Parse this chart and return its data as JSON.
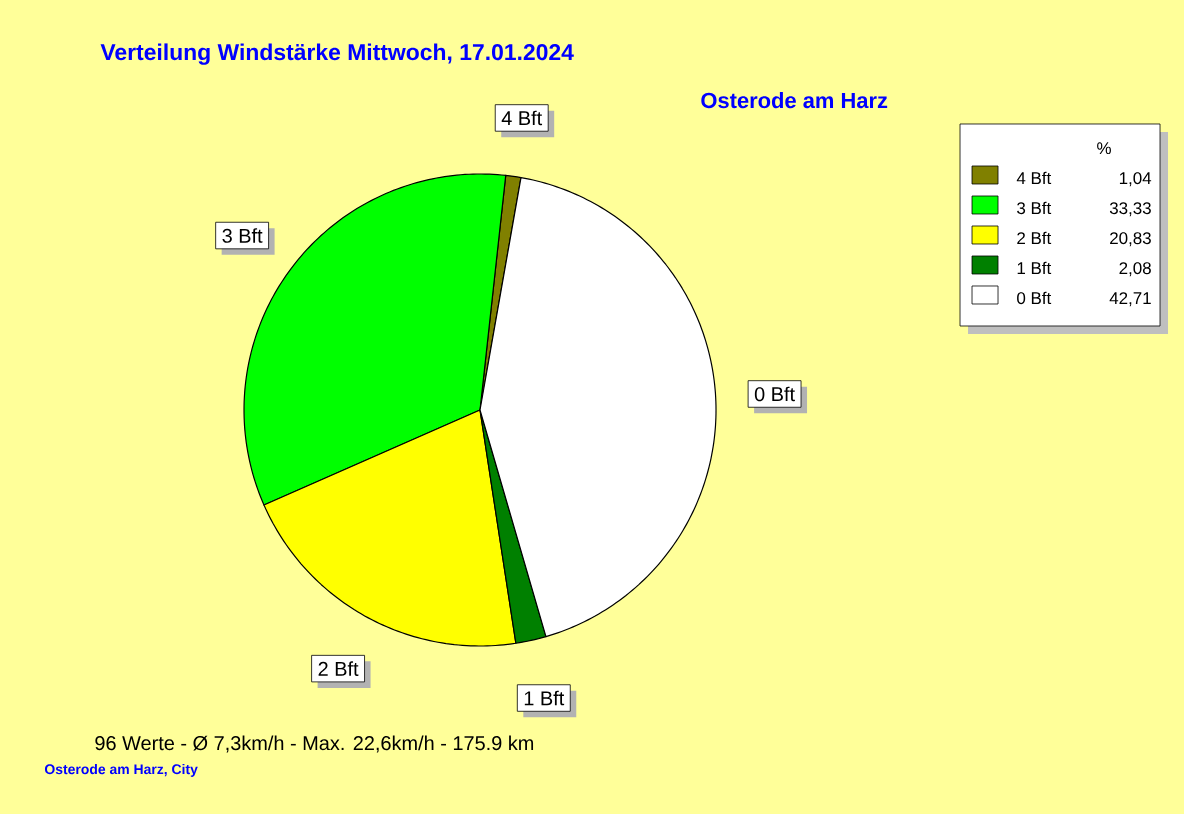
{
  "chart_data": {
    "type": "pie",
    "title": "Verteilung Windstärke  Mittwoch, 17.01.2024",
    "subtitle": "Osterode am Harz",
    "categories": [
      "4 Bft",
      "3 Bft",
      "2 Bft",
      "1 Bft",
      "0 Bft"
    ],
    "values": [
      1.04,
      33.33,
      20.83,
      2.08,
      42.71
    ],
    "value_labels": [
      "1,04",
      "33,33",
      "20,83",
      "2,08",
      "42,71"
    ],
    "colors": [
      "#808000",
      "#00ff00",
      "#ffff00",
      "#008000",
      "#ffffff"
    ],
    "legend": "top right",
    "legend_title": "%",
    "annotations": [
      "96 Werte   -   Ø 7,3km/h  -  Max. 22,6km/h   -   175.9 km",
      "Osterode am Harz, City"
    ]
  }
}
